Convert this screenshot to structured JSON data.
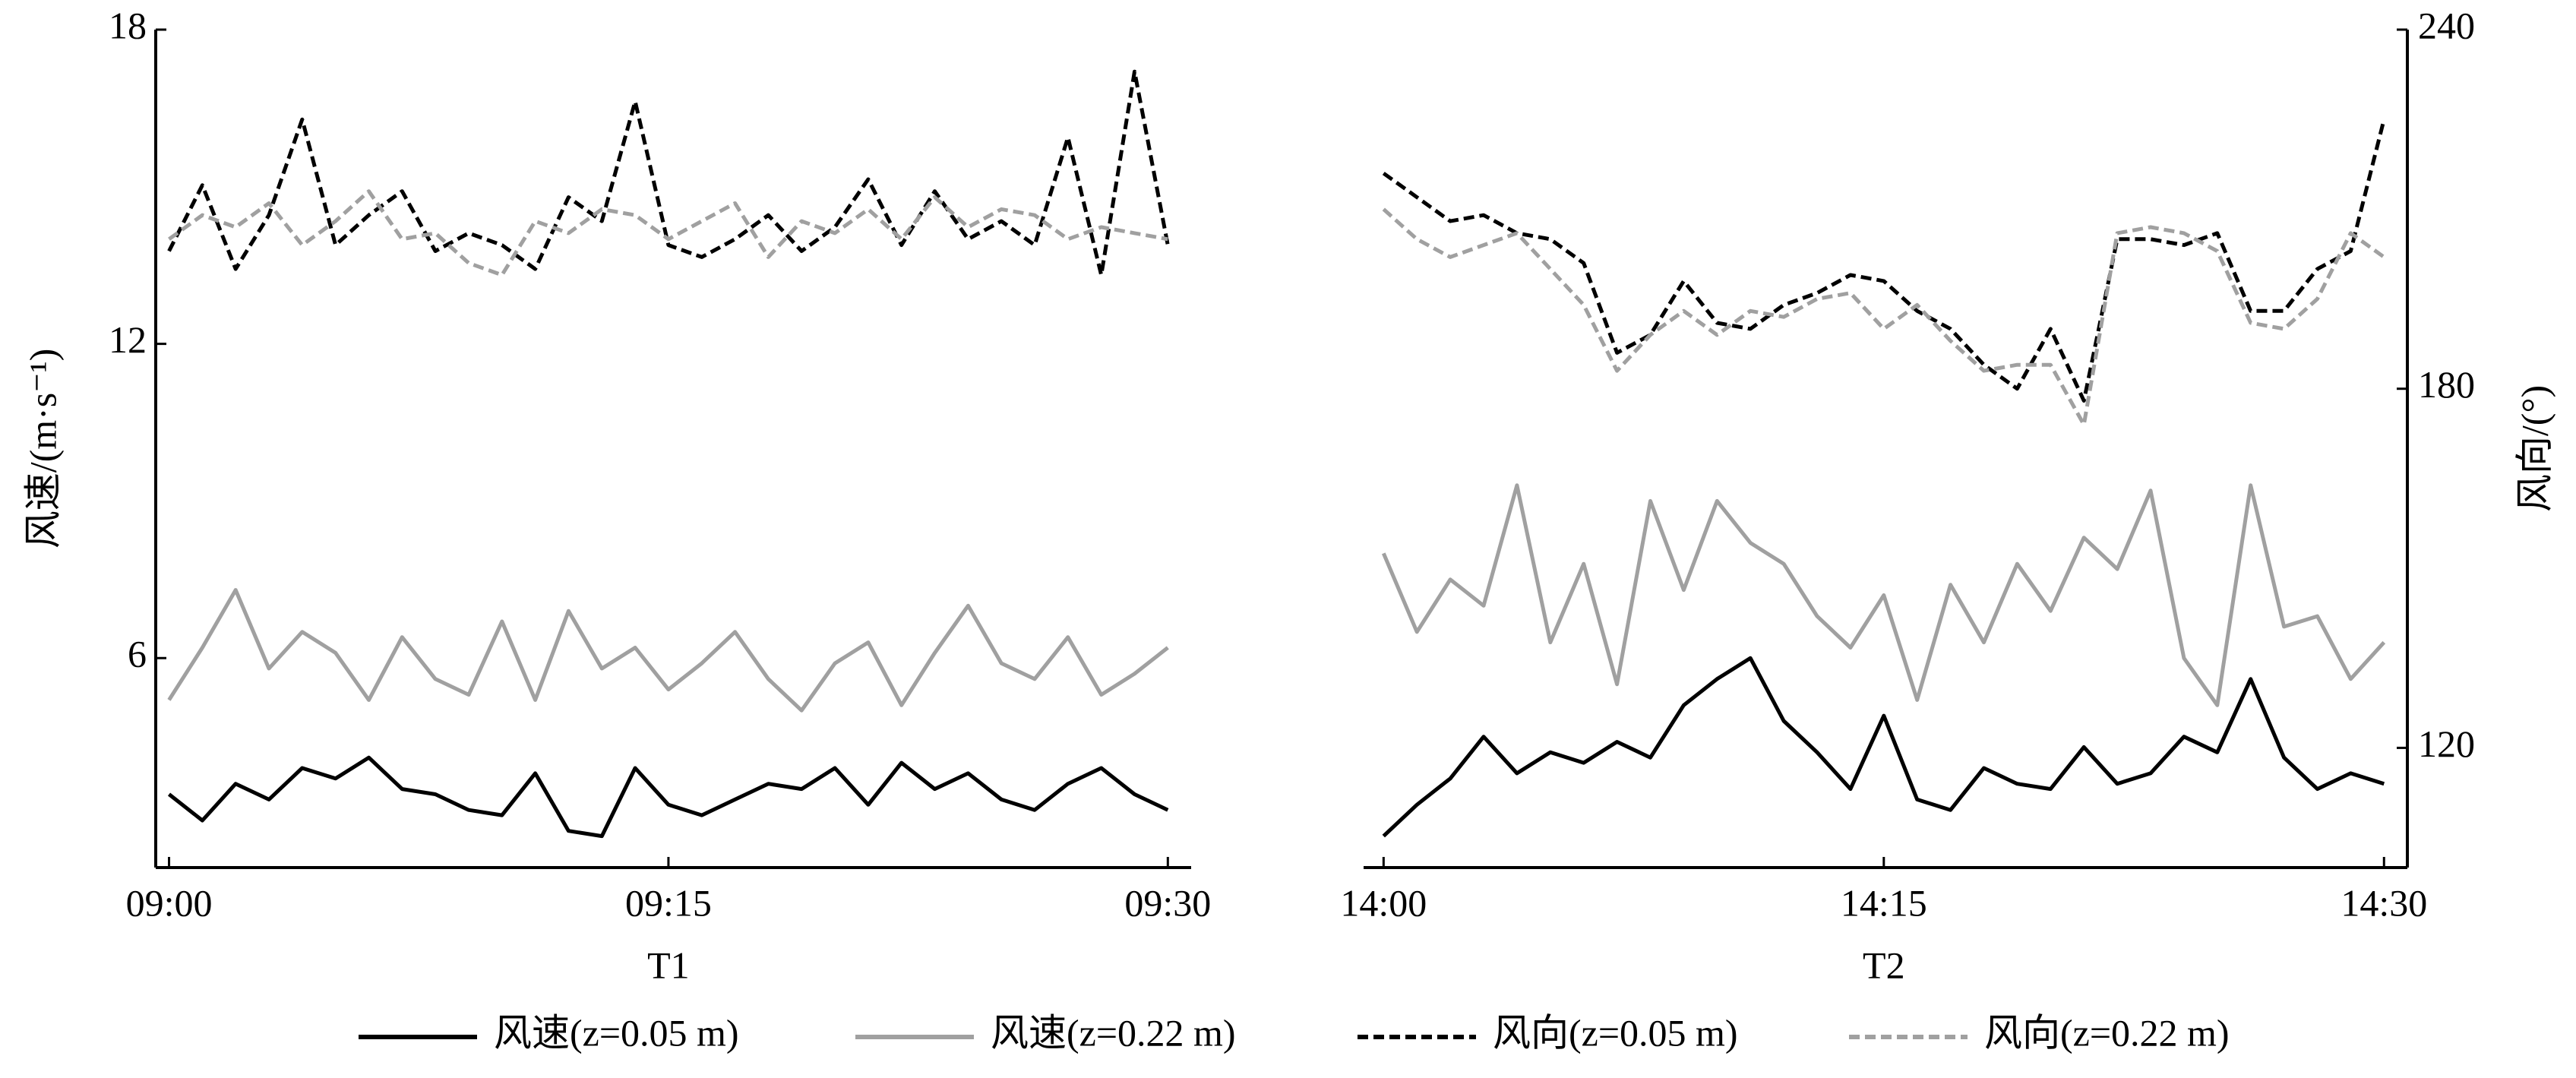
{
  "chart_data": [
    {
      "type": "line",
      "xlabel": "T1",
      "ylabel": "风速/(m·s⁻¹)",
      "x": [
        0,
        1,
        2,
        3,
        4,
        5,
        6,
        7,
        8,
        9,
        10,
        11,
        12,
        13,
        14,
        15,
        16,
        17,
        18,
        19,
        20,
        21,
        22,
        23,
        24,
        25,
        26,
        27,
        28,
        29,
        30
      ],
      "xlim": [
        -0.4,
        30.7
      ],
      "xticks": [
        {
          "value": 0,
          "label": "09:00"
        },
        {
          "value": 15,
          "label": "09:15"
        },
        {
          "value": 30,
          "label": "09:30"
        }
      ],
      "ylim": [
        2,
        18
      ],
      "yticks": [
        6,
        12,
        18
      ],
      "y2lim": [
        100,
        240
      ],
      "series": [
        {
          "name": "风速(z=0.05 m)",
          "color": "#000000",
          "linestyle": "solid",
          "axis": "y",
          "values": [
            3.4,
            2.9,
            3.6,
            3.3,
            3.9,
            3.7,
            4.1,
            3.5,
            3.4,
            3.1,
            3.0,
            3.8,
            2.7,
            2.6,
            3.9,
            3.2,
            3.0,
            3.3,
            3.6,
            3.5,
            3.9,
            3.2,
            4.0,
            3.5,
            3.8,
            3.3,
            3.1,
            3.6,
            3.9,
            3.4,
            3.1
          ]
        },
        {
          "name": "风速(z=0.22 m)",
          "color": "#a0a0a0",
          "linestyle": "solid",
          "axis": "y",
          "values": [
            5.2,
            6.2,
            7.3,
            5.8,
            6.5,
            6.1,
            5.2,
            6.4,
            5.6,
            5.3,
            6.7,
            5.2,
            6.9,
            5.8,
            6.2,
            5.4,
            5.9,
            6.5,
            5.6,
            5.0,
            5.9,
            6.3,
            5.1,
            6.1,
            7.0,
            5.9,
            5.6,
            6.4,
            5.3,
            5.7,
            6.2
          ]
        },
        {
          "name": "风向(z=0.05 m)",
          "color": "#000000",
          "linestyle": "dashed",
          "axis": "y2",
          "values": [
            203,
            214,
            200,
            209,
            225,
            204,
            209,
            213,
            203,
            206,
            204,
            200,
            212,
            208,
            228,
            204,
            202,
            205,
            209,
            203,
            207,
            215,
            204,
            213,
            205,
            208,
            204,
            222,
            199,
            233,
            204
          ]
        },
        {
          "name": "风向(z=0.22 m)",
          "color": "#a0a0a0",
          "linestyle": "dashed",
          "axis": "y2",
          "values": [
            205,
            209,
            207,
            211,
            204,
            208,
            213,
            205,
            206,
            201,
            199,
            208,
            206,
            210,
            209,
            205,
            208,
            211,
            202,
            208,
            206,
            210,
            205,
            212,
            207,
            210,
            209,
            205,
            207,
            206,
            205
          ]
        }
      ]
    },
    {
      "type": "line",
      "xlabel": "T2",
      "y2label": "风向/(°)",
      "x": [
        0,
        1,
        2,
        3,
        4,
        5,
        6,
        7,
        8,
        9,
        10,
        11,
        12,
        13,
        14,
        15,
        16,
        17,
        18,
        19,
        20,
        21,
        22,
        23,
        24,
        25,
        26,
        27,
        28,
        29,
        30
      ],
      "xlim": [
        -0.6,
        30.7
      ],
      "xticks": [
        {
          "value": 0,
          "label": "14:00"
        },
        {
          "value": 15,
          "label": "14:15"
        },
        {
          "value": 30,
          "label": "14:30"
        }
      ],
      "ylim": [
        2,
        18
      ],
      "y2lim": [
        100,
        240
      ],
      "y2ticks": [
        120,
        180,
        240
      ],
      "series": [
        {
          "name": "风速(z=0.05 m)",
          "color": "#000000",
          "linestyle": "solid",
          "axis": "y",
          "values": [
            2.6,
            3.2,
            3.7,
            4.5,
            3.8,
            4.2,
            4.0,
            4.4,
            4.1,
            5.1,
            5.6,
            6.0,
            4.8,
            4.2,
            3.5,
            4.9,
            3.3,
            3.1,
            3.9,
            3.6,
            3.5,
            4.3,
            3.6,
            3.8,
            4.5,
            4.2,
            5.6,
            4.1,
            3.5,
            3.8,
            3.6
          ]
        },
        {
          "name": "风速(z=0.22 m)",
          "color": "#a0a0a0",
          "linestyle": "solid",
          "axis": "y",
          "values": [
            8.0,
            6.5,
            7.5,
            7.0,
            9.3,
            6.3,
            7.8,
            5.5,
            9.0,
            7.3,
            9.0,
            8.2,
            7.8,
            6.8,
            6.2,
            7.2,
            5.2,
            7.4,
            6.3,
            7.8,
            6.9,
            8.3,
            7.7,
            9.2,
            6.0,
            5.1,
            9.3,
            6.6,
            6.8,
            5.6,
            6.3
          ]
        },
        {
          "name": "风向(z=0.05 m)",
          "color": "#000000",
          "linestyle": "dashed",
          "axis": "y2",
          "values": [
            216,
            212,
            208,
            209,
            206,
            205,
            201,
            186,
            189,
            198,
            191,
            190,
            194,
            196,
            199,
            198,
            193,
            190,
            184,
            180,
            190,
            178,
            205,
            205,
            204,
            206,
            193,
            193,
            200,
            203,
            225
          ]
        },
        {
          "name": "风向(z=0.22 m)",
          "color": "#a0a0a0",
          "linestyle": "dashed",
          "axis": "y2",
          "values": [
            210,
            205,
            202,
            204,
            206,
            200,
            194,
            183,
            189,
            193,
            189,
            193,
            192,
            195,
            196,
            190,
            194,
            188,
            183,
            184,
            184,
            174,
            206,
            207,
            206,
            203,
            191,
            190,
            195,
            206,
            202
          ]
        }
      ]
    }
  ]
}
